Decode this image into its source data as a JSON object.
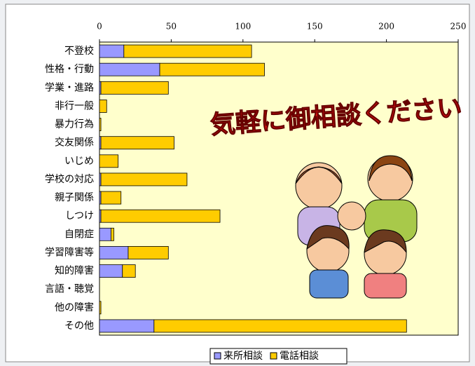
{
  "chart_data": {
    "type": "stacked-barh",
    "categories": [
      "不登校",
      "性格・行動",
      "学業・進路",
      "非行一般",
      "暴力行為",
      "交友関係",
      "いじめ",
      "学校の対応",
      "親子関係",
      "しつけ",
      "自閉症",
      "学習障害等",
      "知的障害",
      "言語・聴覚",
      "他の障害",
      "その他"
    ],
    "series": [
      {
        "name": "来所相談",
        "color": "#9999ff",
        "values": [
          17,
          42,
          1,
          0,
          0,
          1,
          0,
          1,
          1,
          1,
          8,
          20,
          16,
          0,
          0,
          38
        ]
      },
      {
        "name": "電話相談",
        "color": "#ffcc00",
        "values": [
          89,
          73,
          47,
          5,
          1,
          51,
          13,
          60,
          14,
          83,
          2,
          28,
          9,
          0,
          1,
          176
        ]
      }
    ],
    "xlim": [
      0,
      250
    ],
    "xticks": [
      0,
      50,
      100,
      150,
      200,
      250
    ],
    "grid": false,
    "legend": "bottom",
    "annotation": "気軽に御相談ください"
  }
}
